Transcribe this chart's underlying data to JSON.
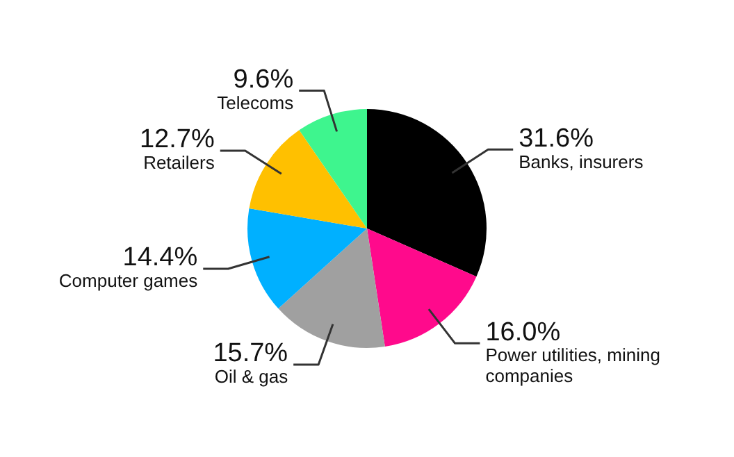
{
  "chart_data": {
    "type": "pie",
    "categories": [
      "Banks, insurers",
      "Power utilities, mining companies",
      "Oil & gas",
      "Computer games",
      "Retailers",
      "Telecoms"
    ],
    "values": [
      31.6,
      16.0,
      15.7,
      14.4,
      12.7,
      9.6
    ],
    "value_labels": [
      "31.6%",
      "16.0%",
      "15.7%",
      "14.4%",
      "12.7%",
      "9.6%"
    ],
    "colors": [
      "#000000",
      "#ff0a8c",
      "#a0a0a0",
      "#00b0ff",
      "#ffc000",
      "#3ef58e"
    ],
    "legend": false
  }
}
